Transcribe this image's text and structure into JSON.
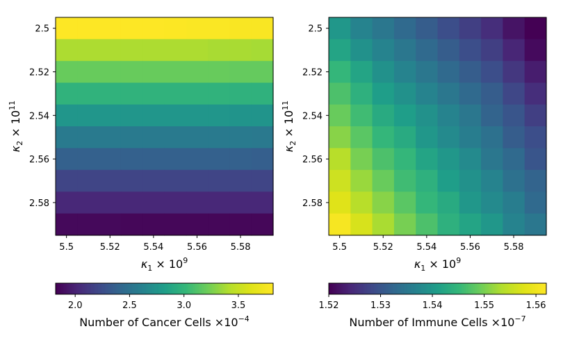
{
  "chart_data": [
    {
      "type": "heatmap",
      "x": [
        5.5,
        5.51,
        5.52,
        5.53,
        5.54,
        5.55,
        5.56,
        5.57,
        5.58,
        5.59
      ],
      "y": [
        2.5,
        2.51,
        2.52,
        2.53,
        2.54,
        2.55,
        2.56,
        2.57,
        2.58,
        2.59
      ],
      "x_ticks": [
        "5.5",
        "5.52",
        "5.54",
        "5.56",
        "5.58"
      ],
      "y_ticks": [
        "2.5",
        "2.52",
        "2.54",
        "2.56",
        "2.58"
      ],
      "xlabel": {
        "base": "κ",
        "sub": "1",
        "times": " × 10",
        "sup": "9"
      },
      "ylabel": {
        "base": "κ",
        "sub": "2",
        "times": " × 10",
        "sup": "11"
      },
      "colorbar": {
        "label_text": "Number of Cancer Cells ×10",
        "label_sup": "−4",
        "range": [
          1.82,
          3.82
        ],
        "ticks": [
          "2.0",
          "2.5",
          "3.0",
          "3.5"
        ],
        "tick_values": [
          2.0,
          2.5,
          3.0,
          3.5
        ]
      },
      "z": [
        [
          3.82,
          3.82,
          3.82,
          3.82,
          3.82,
          3.81,
          3.8,
          3.8,
          3.79,
          3.79
        ],
        [
          3.4,
          3.4,
          3.4,
          3.4,
          3.4,
          3.4,
          3.4,
          3.39,
          3.39,
          3.38
        ],
        [
          3.2,
          3.2,
          3.2,
          3.2,
          3.2,
          3.2,
          3.2,
          3.2,
          3.19,
          3.19
        ],
        [
          2.98,
          2.98,
          2.98,
          2.98,
          2.98,
          2.98,
          2.98,
          2.98,
          2.97,
          2.97
        ],
        [
          2.76,
          2.76,
          2.76,
          2.76,
          2.76,
          2.76,
          2.76,
          2.76,
          2.75,
          2.75
        ],
        [
          2.56,
          2.56,
          2.56,
          2.56,
          2.56,
          2.56,
          2.56,
          2.56,
          2.56,
          2.55
        ],
        [
          2.37,
          2.37,
          2.37,
          2.37,
          2.37,
          2.37,
          2.37,
          2.37,
          2.37,
          2.36
        ],
        [
          2.19,
          2.19,
          2.19,
          2.19,
          2.19,
          2.19,
          2.19,
          2.19,
          2.19,
          2.19
        ],
        [
          2.02,
          2.02,
          2.02,
          2.02,
          2.02,
          2.02,
          2.02,
          2.02,
          2.02,
          2.02
        ],
        [
          1.86,
          1.86,
          1.86,
          1.85,
          1.85,
          1.85,
          1.85,
          1.85,
          1.85,
          1.85
        ]
      ]
    },
    {
      "type": "heatmap",
      "x": [
        5.5,
        5.51,
        5.52,
        5.53,
        5.54,
        5.55,
        5.56,
        5.57,
        5.58,
        5.59
      ],
      "y": [
        2.5,
        2.51,
        2.52,
        2.53,
        2.54,
        2.55,
        2.56,
        2.57,
        2.58,
        2.59
      ],
      "x_ticks": [
        "5.5",
        "5.52",
        "5.54",
        "5.56",
        "5.58"
      ],
      "y_ticks": [
        "2.5",
        "2.52",
        "2.54",
        "2.56",
        "2.58"
      ],
      "xlabel": {
        "base": "κ",
        "sub": "1",
        "times": " × 10",
        "sup": "9"
      },
      "ylabel": {
        "base": "κ",
        "sub": "2",
        "times": " × 10",
        "sup": "11"
      },
      "colorbar": {
        "label_text": "Number of Immune Cells ×10",
        "label_sup": "−7",
        "range": [
          1.52,
          1.562
        ],
        "ticks": [
          "1.52",
          "1.53",
          "1.54",
          "1.55",
          "1.56"
        ],
        "tick_values": [
          1.52,
          1.53,
          1.54,
          1.55,
          1.56
        ]
      },
      "z": [
        [
          1.54,
          1.537,
          1.535,
          1.533,
          1.531,
          1.529,
          1.527,
          1.525,
          1.522,
          1.52
        ],
        [
          1.542,
          1.539,
          1.537,
          1.535,
          1.533,
          1.531,
          1.529,
          1.527,
          1.524,
          1.521
        ],
        [
          1.545,
          1.542,
          1.539,
          1.537,
          1.535,
          1.533,
          1.531,
          1.529,
          1.526,
          1.523
        ],
        [
          1.547,
          1.544,
          1.541,
          1.539,
          1.537,
          1.535,
          1.533,
          1.531,
          1.528,
          1.525
        ],
        [
          1.549,
          1.546,
          1.543,
          1.541,
          1.539,
          1.537,
          1.535,
          1.532,
          1.53,
          1.527
        ],
        [
          1.551,
          1.548,
          1.545,
          1.543,
          1.54,
          1.538,
          1.536,
          1.534,
          1.531,
          1.529
        ],
        [
          1.554,
          1.55,
          1.547,
          1.545,
          1.542,
          1.54,
          1.538,
          1.535,
          1.533,
          1.53
        ],
        [
          1.556,
          1.552,
          1.549,
          1.546,
          1.544,
          1.541,
          1.539,
          1.537,
          1.534,
          1.532
        ],
        [
          1.558,
          1.554,
          1.551,
          1.548,
          1.545,
          1.543,
          1.54,
          1.538,
          1.536,
          1.533
        ],
        [
          1.561,
          1.557,
          1.553,
          1.55,
          1.547,
          1.544,
          1.542,
          1.54,
          1.537,
          1.535
        ]
      ]
    }
  ]
}
